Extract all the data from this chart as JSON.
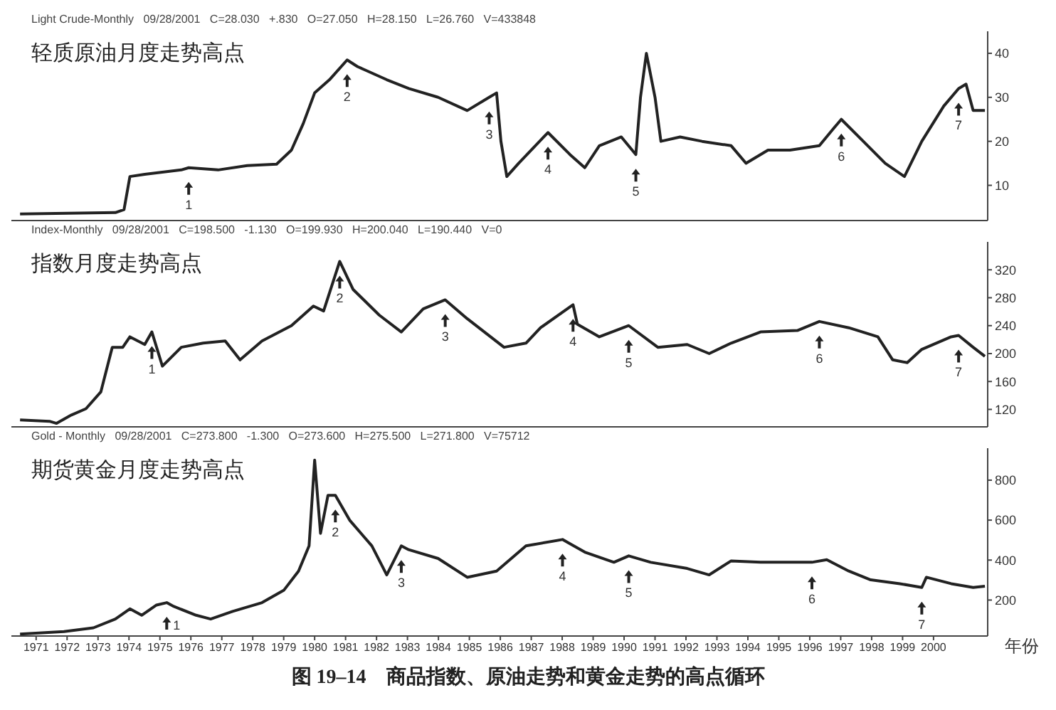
{
  "chart_data": [
    {
      "type": "line",
      "title": "轻质原油月度走势高点",
      "subtitle": "Light Crude-Monthly   09/28/2001   C=28.030   +.830   O=27.050   H=28.150   L=26.760   V=433848",
      "x": [
        1970.48,
        1973.56,
        1973.84,
        1974.03,
        1974.51,
        1975.69,
        1975.93,
        1976.88,
        1977.82,
        1978.77,
        1979.25,
        1979.63,
        1980.0,
        1980.48,
        1981.05,
        1981.38,
        1982.33,
        1983.04,
        1983.99,
        1984.93,
        1985.64,
        1985.88,
        1986.02,
        1986.21,
        1986.59,
        1987.54,
        1988.25,
        1988.73,
        1989.2,
        1989.91,
        1990.38,
        1990.53,
        1990.72,
        1991.0,
        1991.19,
        1991.81,
        1992.52,
        1993.46,
        1993.94,
        1994.65,
        1995.36,
        1996.31,
        1996.78,
        1997.02,
        1997.73,
        1998.44,
        1999.06,
        1999.62,
        2000.33,
        2000.81,
        2001.05,
        2001.28,
        2001.66
      ],
      "series": [
        {
          "color": "#222222",
          "values": [
            3.5,
            3.8,
            4.5,
            12,
            12.5,
            13.5,
            14,
            13.5,
            14.5,
            14.8,
            18,
            24,
            31,
            34,
            38.5,
            37,
            34,
            32,
            30,
            27,
            30,
            31,
            20,
            12,
            15,
            22,
            17,
            14,
            19,
            21,
            17,
            30,
            40,
            30,
            20,
            21,
            20,
            19,
            15,
            18,
            18,
            19,
            23,
            25,
            20,
            15,
            12,
            20,
            28,
            32,
            33,
            27,
            27
          ]
        }
      ],
      "xlim": [
        1970.2,
        2001.75
      ],
      "xticks": [
        1971,
        1972,
        1973,
        1974,
        1975,
        1976,
        1977,
        1978,
        1979,
        1980,
        1981,
        1982,
        1983,
        1984,
        1985,
        1986,
        1987,
        1988,
        1989,
        1990,
        1991,
        1992,
        1993,
        1994,
        1995,
        1996,
        1997,
        1998,
        1999,
        2000
      ],
      "ylim": [
        2,
        45
      ],
      "yticks": [
        10,
        20,
        30,
        40
      ],
      "tick_labels": "y",
      "annotations": [
        {
          "text": "1",
          "x": 1975.93,
          "y": 14
        },
        {
          "text": "2",
          "x": 1981.05,
          "y": 38.5
        },
        {
          "text": "3",
          "x": 1985.64,
          "y": 30
        },
        {
          "text": "4",
          "x": 1987.54,
          "y": 22
        },
        {
          "text": "5",
          "x": 1990.38,
          "y": 17
        },
        {
          "text": "6",
          "x": 1997.02,
          "y": 25
        },
        {
          "text": "7",
          "x": 2000.81,
          "y": 32
        }
      ]
    },
    {
      "type": "line",
      "title": "指数月度走势高点",
      "subtitle": "Index-Monthly   09/28/2001   C=198.500   -1.130   O=199.930   H=200.040   L=190.440   V=0",
      "x": [
        1970.48,
        1971.43,
        1971.66,
        1972.14,
        1972.61,
        1973.09,
        1973.46,
        1973.8,
        1974.03,
        1974.51,
        1974.74,
        1975.08,
        1975.69,
        1976.4,
        1977.11,
        1977.59,
        1978.3,
        1979.25,
        1979.96,
        1980.29,
        1980.81,
        1981.24,
        1982.09,
        1982.8,
        1983.51,
        1984.22,
        1984.93,
        1986.12,
        1986.83,
        1987.3,
        1988.35,
        1988.49,
        1989.2,
        1990.15,
        1991.09,
        1992.04,
        1992.75,
        1993.46,
        1994.41,
        1995.6,
        1996.31,
        1997.26,
        1998.2,
        1998.68,
        1999.15,
        1999.62,
        2000.57,
        2000.81,
        2001.28,
        2001.66
      ],
      "series": [
        {
          "color": "#222222",
          "values": [
            105,
            103,
            100,
            112,
            121,
            145,
            209,
            209,
            224,
            213,
            231,
            182,
            209,
            215,
            218,
            191,
            218,
            240,
            268,
            261,
            332,
            292,
            255,
            231,
            264,
            277,
            250,
            209,
            215,
            237,
            270,
            242,
            224,
            240,
            209,
            213,
            200,
            215,
            231,
            233,
            246,
            237,
            224,
            191,
            187,
            206,
            224,
            226,
            209,
            196
          ]
        }
      ],
      "xlim": [
        1970.2,
        2001.75
      ],
      "xticks": [
        1971,
        1972,
        1973,
        1974,
        1975,
        1976,
        1977,
        1978,
        1979,
        1980,
        1981,
        1982,
        1983,
        1984,
        1985,
        1986,
        1987,
        1988,
        1989,
        1990,
        1991,
        1992,
        1993,
        1994,
        1995,
        1996,
        1997,
        1998,
        1999,
        2000
      ],
      "ylim": [
        95,
        360
      ],
      "yticks": [
        120,
        160,
        200,
        240,
        280,
        320
      ],
      "tick_labels": "y",
      "annotations": [
        {
          "text": "1",
          "x": 1974.74,
          "y": 231
        },
        {
          "text": "2",
          "x": 1980.81,
          "y": 332
        },
        {
          "text": "3",
          "x": 1984.22,
          "y": 277
        },
        {
          "text": "4",
          "x": 1988.35,
          "y": 270
        },
        {
          "text": "5",
          "x": 1990.15,
          "y": 240
        },
        {
          "text": "6",
          "x": 1996.31,
          "y": 246
        },
        {
          "text": "7",
          "x": 2000.81,
          "y": 226
        }
      ]
    },
    {
      "type": "line",
      "title": "期货黄金月度走势高点",
      "subtitle": "Gold - Monthly   09/28/2001   C=273.800   -1.300   O=273.600   H=275.500   L=271.800   V=75712",
      "xlabel": "年份",
      "x": [
        1970.48,
        1971.9,
        1972.85,
        1973.56,
        1974.03,
        1974.41,
        1974.89,
        1975.22,
        1975.45,
        1976.17,
        1976.64,
        1977.35,
        1978.3,
        1979.01,
        1979.48,
        1979.82,
        1980.0,
        1980.19,
        1980.43,
        1980.67,
        1981.14,
        1981.85,
        1982.33,
        1982.8,
        1983.04,
        1983.99,
        1984.93,
        1985.88,
        1986.83,
        1988.01,
        1988.73,
        1989.67,
        1990.15,
        1990.86,
        1992.04,
        1992.75,
        1993.46,
        1994.41,
        1996.07,
        1996.55,
        1997.26,
        1997.97,
        1998.91,
        1999.62,
        1999.77,
        2000.57,
        2001.28,
        2001.66
      ],
      "series": [
        {
          "color": "#222222",
          "values": [
            30,
            42,
            61,
            105,
            156,
            124,
            175,
            187,
            168,
            124,
            105,
            143,
            187,
            250,
            345,
            471,
            900,
            534,
            724,
            724,
            598,
            471,
            326,
            471,
            452,
            408,
            314,
            345,
            471,
            503,
            440,
            389,
            421,
            389,
            358,
            326,
            396,
            389,
            389,
            402,
            345,
            301,
            282,
            263,
            314,
            282,
            263,
            269
          ]
        }
      ],
      "xlim": [
        1970.2,
        2001.75
      ],
      "xticks": [
        1971,
        1972,
        1973,
        1974,
        1975,
        1976,
        1977,
        1978,
        1979,
        1980,
        1981,
        1982,
        1983,
        1984,
        1985,
        1986,
        1987,
        1988,
        1989,
        1990,
        1991,
        1992,
        1993,
        1994,
        1995,
        1996,
        1997,
        1998,
        1999,
        2000
      ],
      "ylim": [
        20,
        960
      ],
      "yticks": [
        200,
        400,
        600,
        800
      ],
      "annotations": [
        {
          "text": "1",
          "x": 1975.22,
          "y": 187
        },
        {
          "text": "2",
          "x": 1980.67,
          "y": 724
        },
        {
          "text": "3",
          "x": 1982.8,
          "y": 471
        },
        {
          "text": "4",
          "x": 1988.01,
          "y": 503
        },
        {
          "text": "5",
          "x": 1990.15,
          "y": 421
        },
        {
          "text": "6",
          "x": 1996.07,
          "y": 389
        },
        {
          "text": "7",
          "x": 1999.62,
          "y": 263
        },
        "图 19–14　商品指数、原油走势和黄金走势的高点循环"
      ]
    }
  ]
}
